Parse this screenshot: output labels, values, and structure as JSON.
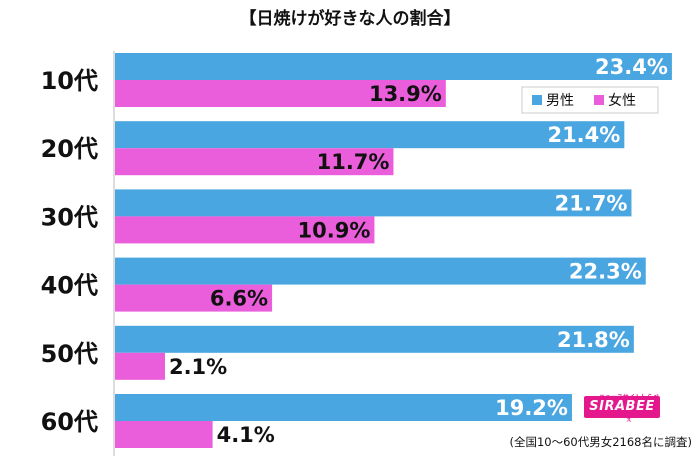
{
  "chart_data": {
    "type": "bar",
    "orientation": "horizontal",
    "title": "【日焼けが好きな人の割合】",
    "categories": [
      "10代",
      "20代",
      "30代",
      "40代",
      "50代",
      "60代"
    ],
    "series": [
      {
        "name": "男性",
        "values": [
          23.4,
          21.4,
          21.7,
          22.3,
          21.8,
          19.2
        ],
        "color": "#4aa6e0"
      },
      {
        "name": "女性",
        "values": [
          13.9,
          11.7,
          10.9,
          6.6,
          2.1,
          4.1
        ],
        "color": "#ea5ddb"
      }
    ],
    "value_suffix": "%",
    "legend_position": "top-right",
    "grid": false,
    "xlim": [
      0,
      25
    ]
  },
  "footnote": "(全国10〜60代男女2168名に調査)",
  "logo": {
    "text": "SIRABEE",
    "subtext": "ニュースサイトしらべぇ",
    "color": "#e5178c"
  }
}
